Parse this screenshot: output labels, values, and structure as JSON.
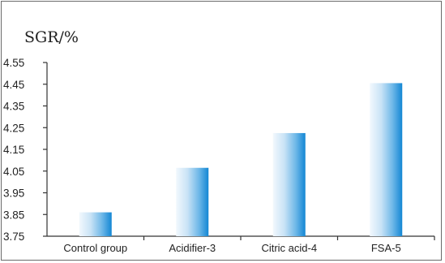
{
  "chart_data": {
    "type": "bar",
    "ylabel": "SGR/%",
    "xlabel": "",
    "title": "",
    "categories": [
      "Control group",
      "Acidifier-3",
      "Citric acid-4",
      "FSA-5"
    ],
    "values": [
      3.86,
      4.065,
      4.225,
      4.455
    ],
    "ylim": [
      3.75,
      4.55
    ],
    "yticks": [
      3.75,
      3.85,
      3.95,
      4.05,
      4.15,
      4.25,
      4.35,
      4.45,
      4.55
    ],
    "ytick_labels": [
      "3.75",
      "3.85",
      "3.95",
      "4.05",
      "4.15",
      "4.25",
      "4.35",
      "4.45",
      "4.55"
    ],
    "grid": false,
    "bar_gradient": [
      "#eaf4fc",
      "#9fcef0",
      "#1f8fd6"
    ]
  }
}
